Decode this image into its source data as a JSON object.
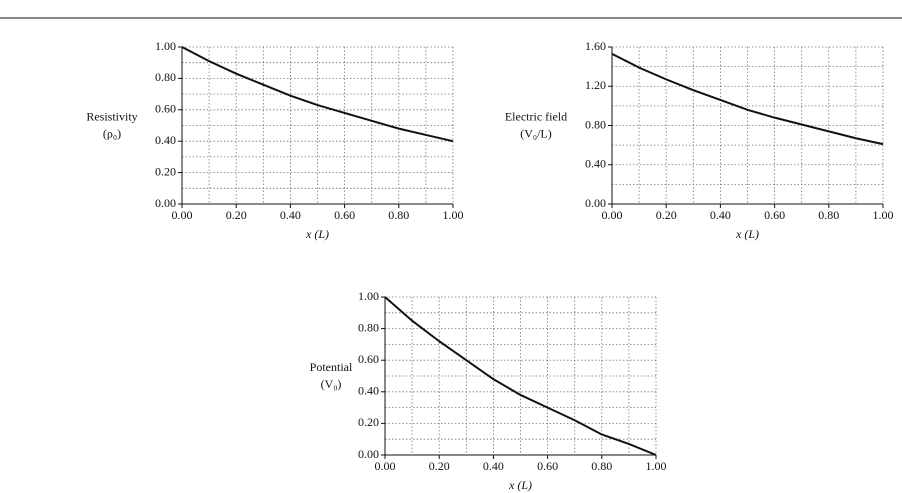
{
  "chart_data": [
    {
      "type": "line",
      "ylabel": [
        "Resistivity",
        "(ρ₀)"
      ],
      "xlabel": "x (L)",
      "x": [
        0,
        0.1,
        0.2,
        0.3,
        0.4,
        0.5,
        0.6,
        0.7,
        0.8,
        0.9,
        1.0
      ],
      "values": [
        1.0,
        0.91,
        0.83,
        0.76,
        0.69,
        0.63,
        0.58,
        0.53,
        0.48,
        0.44,
        0.4
      ],
      "color": "#111111",
      "xlim": [
        0,
        1
      ],
      "ylim": [
        0,
        1
      ],
      "xticks": [
        {
          "value": 0,
          "label": "0.00"
        },
        {
          "value": 0.2,
          "label": "0.20"
        },
        {
          "value": 0.4,
          "label": "0.40"
        },
        {
          "value": 0.6,
          "label": "0.60"
        },
        {
          "value": 0.8,
          "label": "0.80"
        },
        {
          "value": 1,
          "label": "1.00"
        }
      ],
      "yticks": [
        {
          "value": 0,
          "label": "0.00"
        },
        {
          "value": 0.2,
          "label": "0.20"
        },
        {
          "value": 0.4,
          "label": "0.40"
        },
        {
          "value": 0.6,
          "label": "0.60"
        },
        {
          "value": 0.8,
          "label": "0.80"
        },
        {
          "value": 1,
          "label": "1.00"
        }
      ],
      "minor_xticks": [
        0.1,
        0.3,
        0.5,
        0.7,
        0.9
      ],
      "minor_yticks": [
        0.1,
        0.3,
        0.5,
        0.7,
        0.9
      ],
      "grid": true
    },
    {
      "type": "line",
      "ylabel": [
        "Electric field",
        "(V₀/L)"
      ],
      "xlabel": "x (L)",
      "x": [
        0,
        0.1,
        0.2,
        0.3,
        0.4,
        0.5,
        0.6,
        0.7,
        0.8,
        0.9,
        1.0
      ],
      "values": [
        1.53,
        1.39,
        1.27,
        1.16,
        1.06,
        0.96,
        0.88,
        0.81,
        0.74,
        0.67,
        0.61
      ],
      "color": "#111111",
      "xlim": [
        0,
        1
      ],
      "ylim": [
        0,
        1.6
      ],
      "xticks": [
        {
          "value": 0,
          "label": "0.00"
        },
        {
          "value": 0.2,
          "label": "0.20"
        },
        {
          "value": 0.4,
          "label": "0.40"
        },
        {
          "value": 0.6,
          "label": "0.60"
        },
        {
          "value": 0.8,
          "label": "0.80"
        },
        {
          "value": 1,
          "label": "1.00"
        }
      ],
      "yticks": [
        {
          "value": 0,
          "label": "0.00"
        },
        {
          "value": 0.4,
          "label": "0.40"
        },
        {
          "value": 0.8,
          "label": "0.80"
        },
        {
          "value": 1.2,
          "label": "1.20"
        },
        {
          "value": 1.6,
          "label": "1.60"
        }
      ],
      "minor_xticks": [
        0.1,
        0.3,
        0.5,
        0.7,
        0.9
      ],
      "minor_yticks": [
        0.2,
        0.6,
        1.0,
        1.4
      ],
      "grid": true
    },
    {
      "type": "line",
      "ylabel": [
        "Potential",
        "(V₀)"
      ],
      "xlabel": "x (L)",
      "x": [
        0,
        0.1,
        0.2,
        0.3,
        0.4,
        0.5,
        0.6,
        0.7,
        0.8,
        0.9,
        1.0
      ],
      "values": [
        1.0,
        0.85,
        0.72,
        0.6,
        0.48,
        0.38,
        0.3,
        0.22,
        0.13,
        0.07,
        0.0
      ],
      "color": "#111111",
      "xlim": [
        0,
        1
      ],
      "ylim": [
        0,
        1
      ],
      "xticks": [
        {
          "value": 0,
          "label": "0.00"
        },
        {
          "value": 0.2,
          "label": "0.20"
        },
        {
          "value": 0.4,
          "label": "0.40"
        },
        {
          "value": 0.6,
          "label": "0.60"
        },
        {
          "value": 0.8,
          "label": "0.80"
        },
        {
          "value": 1,
          "label": "1.00"
        }
      ],
      "yticks": [
        {
          "value": 0,
          "label": "0.00"
        },
        {
          "value": 0.2,
          "label": "0.20"
        },
        {
          "value": 0.4,
          "label": "0.40"
        },
        {
          "value": 0.6,
          "label": "0.60"
        },
        {
          "value": 0.8,
          "label": "0.80"
        },
        {
          "value": 1,
          "label": "1.00"
        }
      ],
      "minor_xticks": [
        0.1,
        0.3,
        0.5,
        0.7,
        0.9
      ],
      "minor_yticks": [
        0.1,
        0.3,
        0.5,
        0.7,
        0.9
      ],
      "grid": true
    }
  ]
}
